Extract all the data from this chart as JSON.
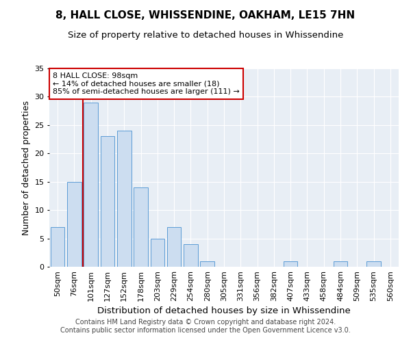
{
  "title1": "8, HALL CLOSE, WHISSENDINE, OAKHAM, LE15 7HN",
  "title2": "Size of property relative to detached houses in Whissendine",
  "xlabel": "Distribution of detached houses by size in Whissendine",
  "ylabel": "Number of detached properties",
  "categories": [
    "50sqm",
    "76sqm",
    "101sqm",
    "127sqm",
    "152sqm",
    "178sqm",
    "203sqm",
    "229sqm",
    "254sqm",
    "280sqm",
    "305sqm",
    "331sqm",
    "356sqm",
    "382sqm",
    "407sqm",
    "433sqm",
    "458sqm",
    "484sqm",
    "509sqm",
    "535sqm",
    "560sqm"
  ],
  "values": [
    7,
    15,
    29,
    23,
    24,
    14,
    5,
    7,
    4,
    1,
    0,
    0,
    0,
    0,
    1,
    0,
    0,
    1,
    0,
    1,
    0
  ],
  "bar_color": "#ccddf0",
  "bar_edge_color": "#5b9bd5",
  "ylim": [
    0,
    35
  ],
  "yticks": [
    0,
    5,
    10,
    15,
    20,
    25,
    30,
    35
  ],
  "property_line_color": "#cc0000",
  "annotation_text": "8 HALL CLOSE: 98sqm\n← 14% of detached houses are smaller (18)\n85% of semi-detached houses are larger (111) →",
  "annotation_box_color": "#ffffff",
  "annotation_box_edge": "#cc0000",
  "footer1": "Contains HM Land Registry data © Crown copyright and database right 2024.",
  "footer2": "Contains public sector information licensed under the Open Government Licence v3.0.",
  "plot_bg_color": "#e8eef5",
  "title1_fontsize": 11,
  "title2_fontsize": 9.5,
  "xlabel_fontsize": 9.5,
  "ylabel_fontsize": 9,
  "tick_fontsize": 8,
  "footer_fontsize": 7
}
